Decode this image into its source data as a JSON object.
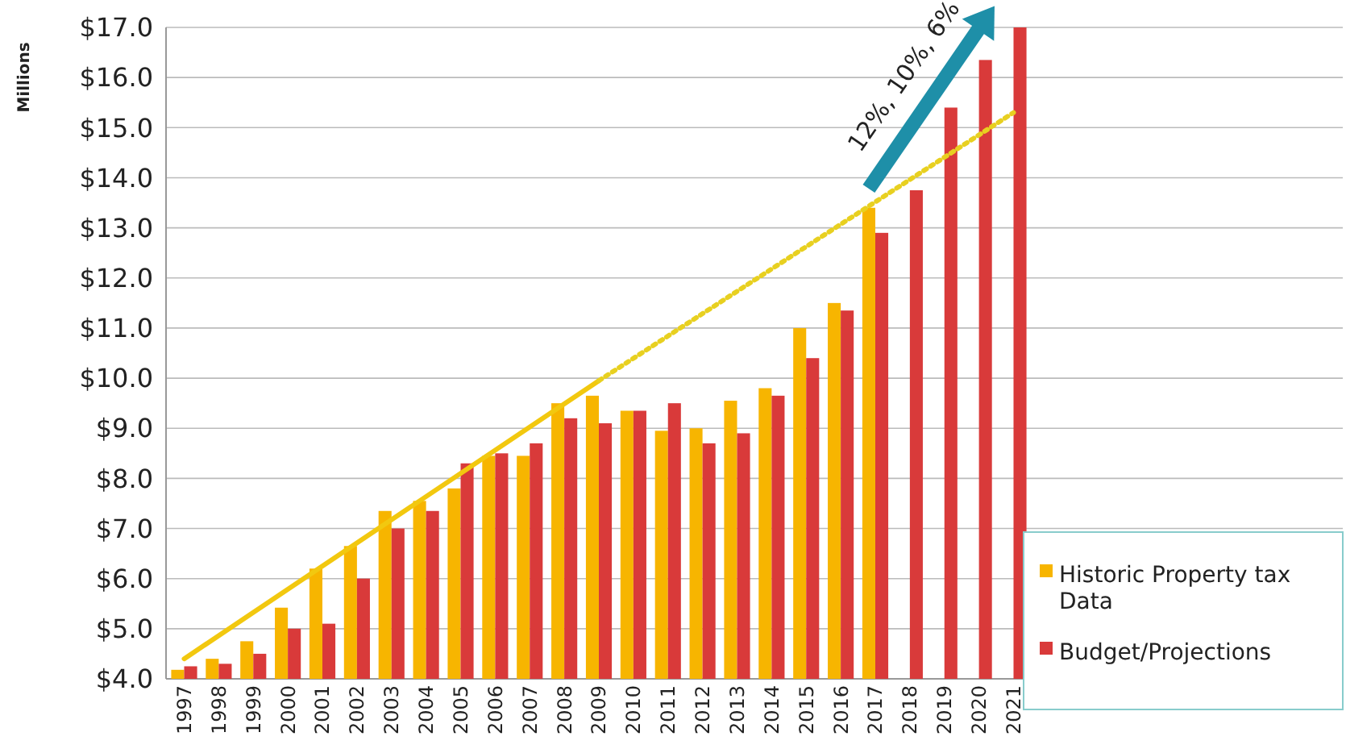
{
  "chart_data": {
    "type": "bar",
    "ylabel": "Millions",
    "categories": [
      "1997",
      "1998",
      "1999",
      "2000",
      "2001",
      "2002",
      "2003",
      "2004",
      "2005",
      "2006",
      "2007",
      "2008",
      "2009",
      "2010",
      "2011",
      "2012",
      "2013",
      "2014",
      "2015",
      "2016",
      "2017",
      "2018",
      "2019",
      "2020",
      "2021"
    ],
    "series": [
      {
        "name": "Historic Property tax Data",
        "color": "#f7b500",
        "values": [
          4.18,
          4.4,
          4.75,
          5.42,
          6.2,
          6.65,
          7.35,
          7.55,
          7.8,
          8.45,
          8.45,
          9.5,
          9.65,
          9.35,
          8.95,
          9.0,
          9.55,
          9.8,
          11.0,
          11.5,
          13.4,
          null,
          null,
          null,
          null
        ]
      },
      {
        "name": "Budget/Projections",
        "color": "#d93a3a",
        "values": [
          4.25,
          4.3,
          4.5,
          5.0,
          5.1,
          6.0,
          7.0,
          7.35,
          8.3,
          8.5,
          8.7,
          9.2,
          9.1,
          9.35,
          9.5,
          8.7,
          8.9,
          9.65,
          10.4,
          11.35,
          12.9,
          13.75,
          15.4,
          16.35,
          17.0
        ]
      },
      {
        "type": "line",
        "color": "#f2c80f",
        "line_style": "solid",
        "values": [
          4.4,
          null,
          null,
          null,
          null,
          null,
          null,
          null,
          null,
          null,
          null,
          null,
          9.95,
          null,
          null,
          null,
          null,
          null,
          null,
          null,
          null,
          null,
          null,
          null,
          null
        ]
      },
      {
        "type": "line",
        "color": "#e8d020",
        "line_style": "dotted",
        "values": [
          null,
          null,
          null,
          null,
          null,
          null,
          null,
          null,
          null,
          null,
          null,
          null,
          9.95,
          null,
          null,
          null,
          null,
          null,
          null,
          null,
          null,
          null,
          null,
          null,
          15.3
        ]
      }
    ],
    "ylim": [
      4,
      17
    ],
    "yticks": [
      {
        "value": 4,
        "label": "$4.0"
      },
      {
        "value": 5,
        "label": "$5.0"
      },
      {
        "value": 6,
        "label": "$6.0"
      },
      {
        "value": 7,
        "label": "$7.0"
      },
      {
        "value": 8,
        "label": "$8.0"
      },
      {
        "value": 9,
        "label": "$9.0"
      },
      {
        "value": 10,
        "label": "$10.0"
      },
      {
        "value": 11,
        "label": "$11.0"
      },
      {
        "value": 12,
        "label": "$12.0"
      },
      {
        "value": 13,
        "label": "$13.0"
      },
      {
        "value": 14,
        "label": "$14.0"
      },
      {
        "value": 15,
        "label": "$15.0"
      },
      {
        "value": 16,
        "label": "$16.0"
      },
      {
        "value": 17,
        "label": "$17.0"
      }
    ],
    "grid": "y",
    "legend": "bottom right",
    "marker": "none",
    "annotations": [
      "12%, 10%, 6%"
    ]
  }
}
